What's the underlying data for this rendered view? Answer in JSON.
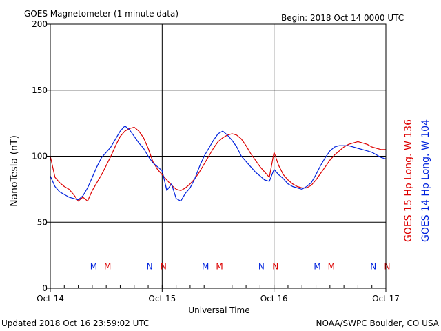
{
  "header": {
    "title": "GOES Magnetometer (1 minute data)",
    "begin": "Begin:  2018 Oct 14 0000 UTC"
  },
  "footer": {
    "updated": "Updated 2018 Oct 16 23:59:02 UTC",
    "source": "NOAA/SWPC Boulder, CO USA"
  },
  "colors": {
    "goes15": "#dd0000",
    "goes14": "#0022dd",
    "grid": "#000000"
  },
  "chart_data": {
    "type": "line",
    "title": "GOES Magnetometer (1 minute data)",
    "xlabel": "Universal Time",
    "ylabel": "NanoTesla (nT)",
    "ylim": [
      0,
      200
    ],
    "xlim": [
      0,
      72
    ],
    "x_unit": "hours since 2018 Oct 14 0000 UTC",
    "x_ticks": [
      {
        "x": 0,
        "label": "Oct 14"
      },
      {
        "x": 24,
        "label": "Oct 15"
      },
      {
        "x": 48,
        "label": "Oct 16"
      },
      {
        "x": 72,
        "label": "Oct 17"
      }
    ],
    "y_ticks": [
      0,
      50,
      100,
      150,
      200
    ],
    "grid": true,
    "series": [
      {
        "name": "GOES 15 Hp  Long. W 136",
        "color": "#dd0000",
        "x": [
          0,
          1,
          2,
          3,
          4,
          5,
          6,
          7,
          8,
          9,
          10,
          11,
          12,
          13,
          14,
          15,
          16,
          17,
          18,
          19,
          20,
          21,
          22,
          23,
          24,
          25,
          26,
          27,
          28,
          29,
          30,
          31,
          32,
          33,
          34,
          35,
          36,
          37,
          38,
          39,
          40,
          41,
          42,
          43,
          44,
          45,
          46,
          47,
          48,
          49,
          50,
          51,
          52,
          53,
          54,
          55,
          56,
          57,
          58,
          59,
          60,
          61,
          62,
          63,
          64,
          65,
          66,
          67,
          68,
          69,
          70,
          71,
          72
        ],
        "values": [
          100,
          84,
          80,
          77,
          75,
          71,
          66,
          69,
          66,
          74,
          80,
          86,
          93,
          100,
          108,
          115,
          119,
          121,
          122,
          119,
          114,
          106,
          96,
          90,
          86,
          82,
          78,
          75,
          74,
          76,
          79,
          83,
          88,
          94,
          100,
          106,
          111,
          114,
          116,
          117,
          116,
          113,
          108,
          102,
          97,
          92,
          88,
          84,
          103,
          93,
          86,
          82,
          79,
          77,
          76,
          76,
          78,
          82,
          87,
          92,
          97,
          101,
          104,
          107,
          109,
          110,
          111,
          110,
          109,
          107,
          106,
          105,
          105
        ]
      },
      {
        "name": "GOES 14 Hp  Long. W 104",
        "color": "#0022dd",
        "x": [
          0,
          1,
          2,
          3,
          4,
          5,
          6,
          7,
          8,
          9,
          10,
          11,
          12,
          13,
          14,
          15,
          16,
          17,
          18,
          19,
          20,
          21,
          22,
          23,
          24,
          25,
          26,
          27,
          28,
          29,
          30,
          31,
          32,
          33,
          34,
          35,
          36,
          37,
          38,
          39,
          40,
          41,
          42,
          43,
          44,
          45,
          46,
          47,
          48,
          49,
          50,
          51,
          52,
          53,
          54,
          55,
          56,
          57,
          58,
          59,
          60,
          61,
          62,
          63,
          64,
          65,
          66,
          67,
          68,
          69,
          70,
          71,
          72
        ],
        "values": [
          85,
          77,
          73,
          71,
          69,
          68,
          67,
          70,
          76,
          84,
          92,
          99,
          103,
          107,
          113,
          119,
          123,
          120,
          115,
          110,
          106,
          100,
          95,
          92,
          89,
          74,
          79,
          68,
          66,
          72,
          76,
          83,
          92,
          100,
          106,
          112,
          117,
          119,
          116,
          112,
          107,
          100,
          96,
          92,
          88,
          85,
          82,
          81,
          90,
          86,
          83,
          79,
          77,
          76,
          75,
          77,
          80,
          86,
          93,
          99,
          104,
          107,
          108,
          108,
          108,
          107,
          106,
          105,
          104,
          103,
          101,
          99,
          98
        ]
      }
    ],
    "annotations": [
      {
        "text": "M",
        "x": 9.3,
        "y": 17,
        "series": "GOES 14"
      },
      {
        "text": "M",
        "x": 12.3,
        "y": 17,
        "series": "GOES 15"
      },
      {
        "text": "N",
        "x": 21.3,
        "y": 17,
        "series": "GOES 14"
      },
      {
        "text": "N",
        "x": 24.3,
        "y": 17,
        "series": "GOES 15"
      },
      {
        "text": "M",
        "x": 33.3,
        "y": 17,
        "series": "GOES 14"
      },
      {
        "text": "M",
        "x": 36.3,
        "y": 17,
        "series": "GOES 15"
      },
      {
        "text": "N",
        "x": 45.3,
        "y": 17,
        "series": "GOES 14"
      },
      {
        "text": "N",
        "x": 48.3,
        "y": 17,
        "series": "GOES 15"
      },
      {
        "text": "M",
        "x": 57.3,
        "y": 17,
        "series": "GOES 14"
      },
      {
        "text": "M",
        "x": 60.3,
        "y": 17,
        "series": "GOES 15"
      },
      {
        "text": "N",
        "x": 69.3,
        "y": 17,
        "series": "GOES 14"
      },
      {
        "text": "N",
        "x": 72.3,
        "y": 17,
        "series": "GOES 15"
      }
    ],
    "legend": [
      {
        "text": "GOES 15 Hp  Long. W 136",
        "color": "#dd0000"
      },
      {
        "text": "GOES 14 Hp  Long. W 104",
        "color": "#0022dd"
      }
    ]
  }
}
